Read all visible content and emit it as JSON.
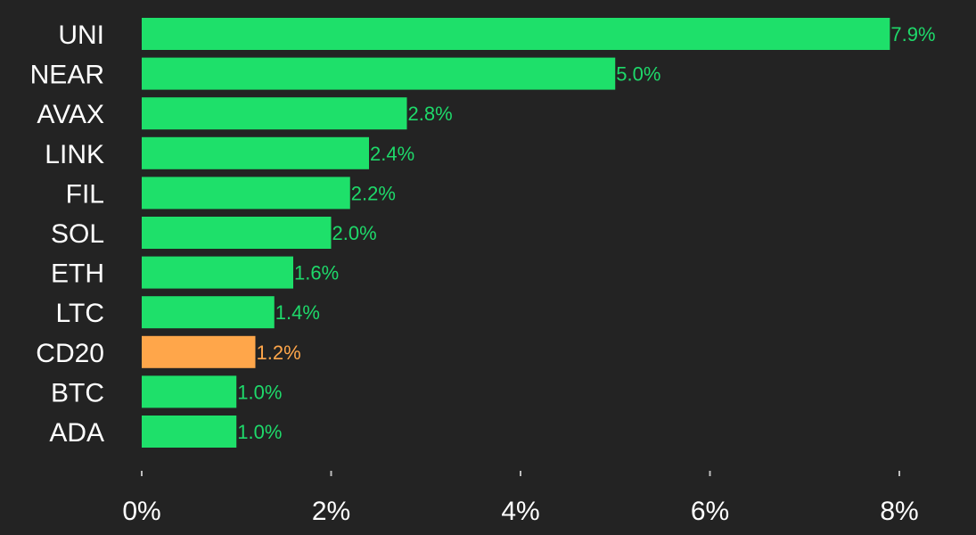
{
  "chart_data": {
    "type": "bar",
    "orientation": "horizontal",
    "title": "",
    "xlabel": "",
    "ylabel": "",
    "xlim": [
      0,
      8
    ],
    "grid": false,
    "legend": "none",
    "categories": [
      "UNI",
      "NEAR",
      "AVAX",
      "LINK",
      "FIL",
      "SOL",
      "ETH",
      "LTC",
      "CD20",
      "BTC",
      "ADA"
    ],
    "values": [
      7.9,
      5.0,
      2.8,
      2.4,
      2.2,
      2.0,
      1.6,
      1.4,
      1.2,
      1.0,
      1.0
    ],
    "value_labels": [
      "7.9%",
      "5.0%",
      "2.8%",
      "2.4%",
      "2.2%",
      "2.0%",
      "1.6%",
      "1.4%",
      "1.2%",
      "1.0%",
      "1.0%"
    ],
    "highlight": [
      "CD20"
    ],
    "x_ticks": [
      0,
      2,
      4,
      6,
      8
    ],
    "x_tick_labels": [
      "0%",
      "2%",
      "4%",
      "6%",
      "8%"
    ],
    "colors": {
      "background": "#232323",
      "bar": "#1ee06a",
      "bar_label": "#1ed96a",
      "highlight_bar": "#ffa64a",
      "highlight_label": "#ffa64a",
      "category_text": "#ffffff",
      "tick_text": "#ffffff",
      "tick_mark": "#bdbdbd"
    }
  }
}
